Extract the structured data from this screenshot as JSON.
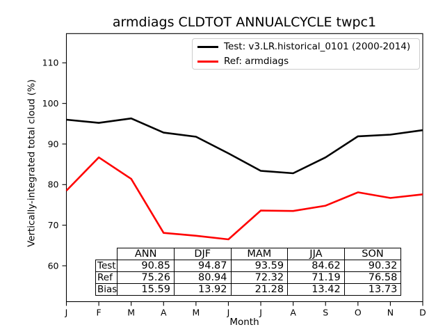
{
  "title": "armdiags CLDTOT ANNUALCYCLE twpc1",
  "axes": {
    "xlabel": "Month",
    "ylabel": "Vertically-integrated total cloud (%)"
  },
  "chart_data": {
    "type": "line",
    "title": "armdiags CLDTOT ANNUALCYCLE twpc1",
    "xlabel": "Month",
    "ylabel": "Vertically-integrated total cloud (%)",
    "categories": [
      "J",
      "F",
      "M",
      "A",
      "M",
      "J",
      "J",
      "A",
      "S",
      "O",
      "N",
      "D"
    ],
    "yticks": [
      60,
      70,
      80,
      90,
      100,
      110
    ],
    "ylim": [
      51,
      117
    ],
    "grid": false,
    "legend_position": "upper right",
    "series": [
      {
        "name": "Test: v3.LR.historical_0101 (2000-2014)",
        "color": "#000000",
        "values": [
          96.0,
          95.2,
          96.3,
          92.8,
          91.8,
          87.7,
          83.4,
          82.8,
          86.7,
          91.9,
          92.3,
          93.4
        ]
      },
      {
        "name": "Ref: armdiags",
        "color": "#ff0000",
        "values": [
          78.5,
          86.7,
          81.4,
          68.1,
          67.4,
          66.5,
          73.6,
          73.5,
          74.8,
          78.1,
          76.7,
          77.6
        ]
      }
    ]
  },
  "stats_table": {
    "columns": [
      "ANN",
      "DJF",
      "MAM",
      "JJA",
      "SON"
    ],
    "rows": [
      {
        "label": "Test",
        "values": [
          "90.85",
          "94.87",
          "93.59",
          "84.62",
          "90.32"
        ]
      },
      {
        "label": "Ref",
        "values": [
          "75.26",
          "80.94",
          "72.32",
          "71.19",
          "76.58"
        ]
      },
      {
        "label": "Bias",
        "values": [
          "15.59",
          "13.92",
          "21.28",
          "13.42",
          "13.73"
        ]
      }
    ]
  }
}
